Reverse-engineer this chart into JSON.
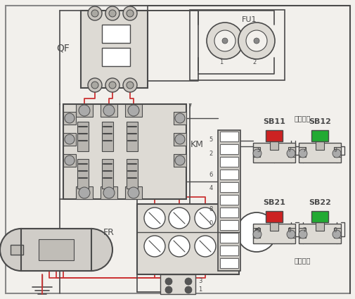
{
  "bg_color": "#f2f0ec",
  "line_color": "#4a4a4a",
  "red_line": "#cc3333",
  "border_color": "#888888",
  "component_fill": "#e0ddd8",
  "label_texts": {
    "QF": "QF",
    "FU1": "FU1",
    "KM": "KM",
    "FR": "FR",
    "SB11": "SB11",
    "SB12": "SB12",
    "SB21": "SB21",
    "SB22": "SB22",
    "jia_ctrl": "甲地控制",
    "yi_ctrl": "乙地控制"
  }
}
